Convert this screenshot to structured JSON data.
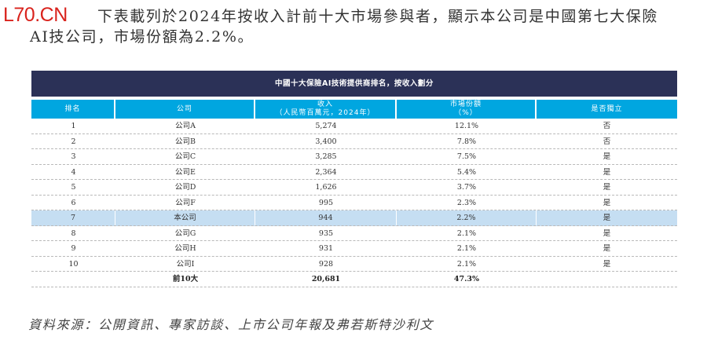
{
  "watermark": "L70.CN",
  "intro": {
    "line1": "下表載列於2024年按收入計前十大市場參與者，顯示本公司是中國第七大保險",
    "line2": "AI技公司，市場份額為2.2%。"
  },
  "table": {
    "title": "中國十大保險AI技術提供商排名，按收入劃分",
    "headers": [
      {
        "line1": "排名",
        "line2": ""
      },
      {
        "line1": "公司",
        "line2": ""
      },
      {
        "line1": "收入",
        "line2": "（人民幣百萬元，2024年）"
      },
      {
        "line1": "市場份額",
        "line2": "（%）"
      },
      {
        "line1": "是否獨立",
        "line2": ""
      }
    ],
    "rows": [
      {
        "rank": "1",
        "company": "公司A",
        "revenue": "5,274",
        "share": "12.1%",
        "independent": "否"
      },
      {
        "rank": "2",
        "company": "公司B",
        "revenue": "3,400",
        "share": "7.8%",
        "independent": "否"
      },
      {
        "rank": "3",
        "company": "公司C",
        "revenue": "3,285",
        "share": "7.5%",
        "independent": "是"
      },
      {
        "rank": "4",
        "company": "公司E",
        "revenue": "2,364",
        "share": "5.4%",
        "independent": "是"
      },
      {
        "rank": "5",
        "company": "公司D",
        "revenue": "1,626",
        "share": "3.7%",
        "independent": "是"
      },
      {
        "rank": "6",
        "company": "公司F",
        "revenue": "995",
        "share": "2.3%",
        "independent": "是"
      },
      {
        "rank": "7",
        "company": "本公司",
        "revenue": "944",
        "share": "2.2%",
        "independent": "是"
      },
      {
        "rank": "8",
        "company": "公司G",
        "revenue": "935",
        "share": "2.1%",
        "independent": "是"
      },
      {
        "rank": "9",
        "company": "公司H",
        "revenue": "931",
        "share": "2.1%",
        "independent": "是"
      },
      {
        "rank": "10",
        "company": "公司I",
        "revenue": "928",
        "share": "2.1%",
        "independent": "是"
      }
    ],
    "total": {
      "rank": "",
      "company": "前10大",
      "revenue": "20,681",
      "share": "47.3%",
      "independent": ""
    },
    "highlight_row_index": 6,
    "colors": {
      "title_bg": "#2b3157",
      "header_bg": "#00a6e0",
      "highlight_bg": "#c5def2"
    }
  },
  "source": "資料來源：公開資訊、專家訪談、上市公司年報及弗若斯特沙利文"
}
